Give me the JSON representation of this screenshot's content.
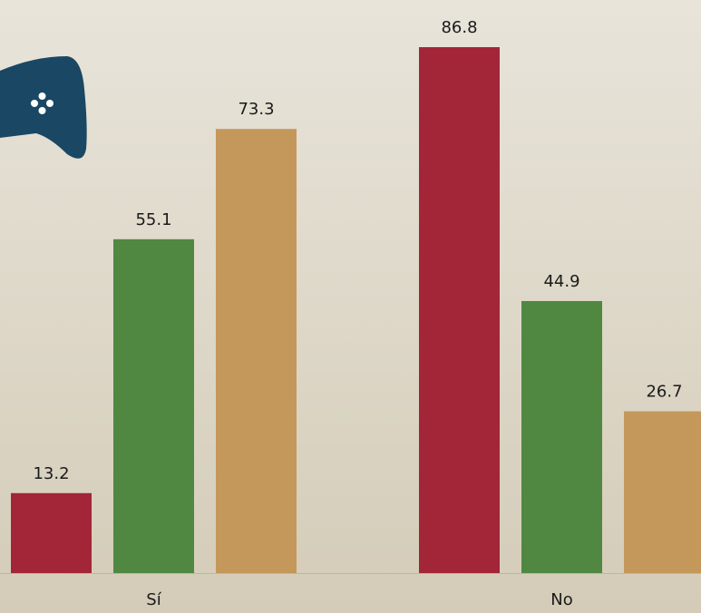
{
  "chart_data": {
    "type": "bar",
    "categories": [
      "Sí",
      "No"
    ],
    "series": [
      {
        "color": "#a32638",
        "values": [
          13.2,
          86.8
        ]
      },
      {
        "color": "#508841",
        "values": [
          55.1,
          44.9
        ]
      },
      {
        "color": "#c4975a",
        "values": [
          73.3,
          26.7
        ]
      }
    ]
  }
}
